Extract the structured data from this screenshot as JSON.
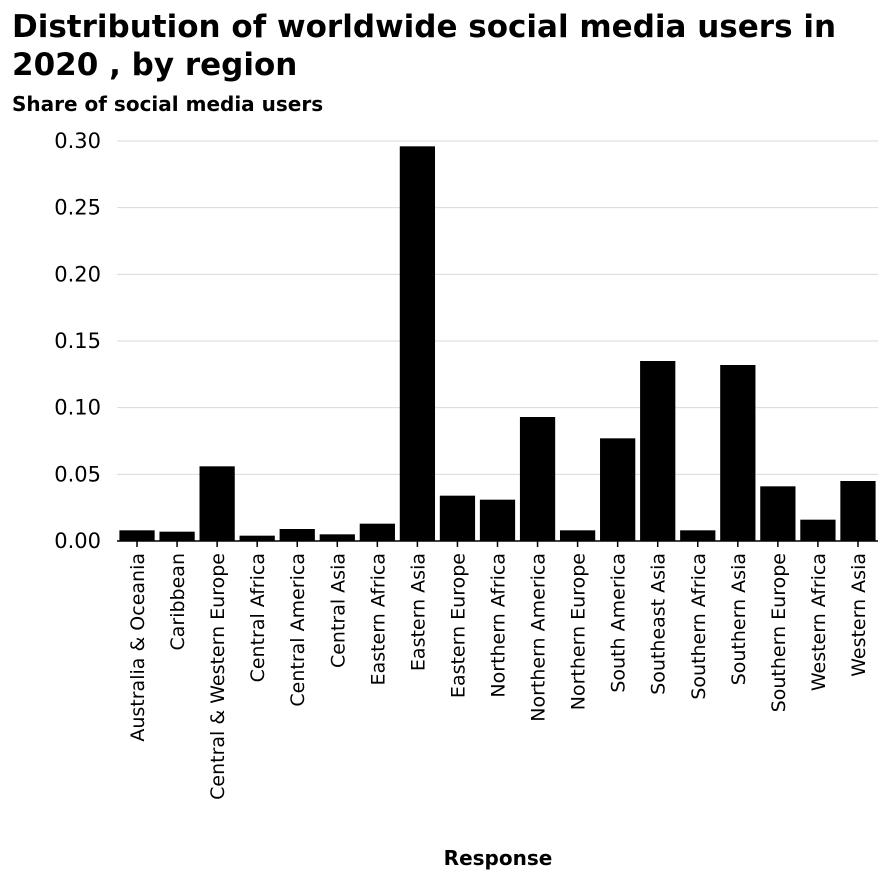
{
  "chart_data": {
    "type": "bar",
    "title": "Distribution of worldwide social media users in 2020 , by region",
    "ylabel": "Share of social media users",
    "xlabel": "Response",
    "ylim": [
      0,
      0.3
    ],
    "yticks": [
      "0.00",
      "0.05",
      "0.10",
      "0.15",
      "0.20",
      "0.25",
      "0.30"
    ],
    "grid": true,
    "bar_color": "#000000",
    "grid_color": "#d9d9d9",
    "categories": [
      "Australia & Oceania",
      "Caribbean",
      "Central & Western Europe",
      "Central Africa",
      "Central America",
      "Central Asia",
      "Eastern Africa",
      "Eastern Asia",
      "Eastern Europe",
      "Northern Africa",
      "Northern America",
      "Northern Europe",
      "South America",
      "Southeast Asia",
      "Southern Africa",
      "Southern Asia",
      "Southern Europe",
      "Western Africa",
      "Western Asia"
    ],
    "values": [
      0.008,
      0.007,
      0.056,
      0.004,
      0.009,
      0.005,
      0.013,
      0.296,
      0.034,
      0.031,
      0.093,
      0.008,
      0.077,
      0.135,
      0.008,
      0.132,
      0.041,
      0.016,
      0.045
    ]
  }
}
